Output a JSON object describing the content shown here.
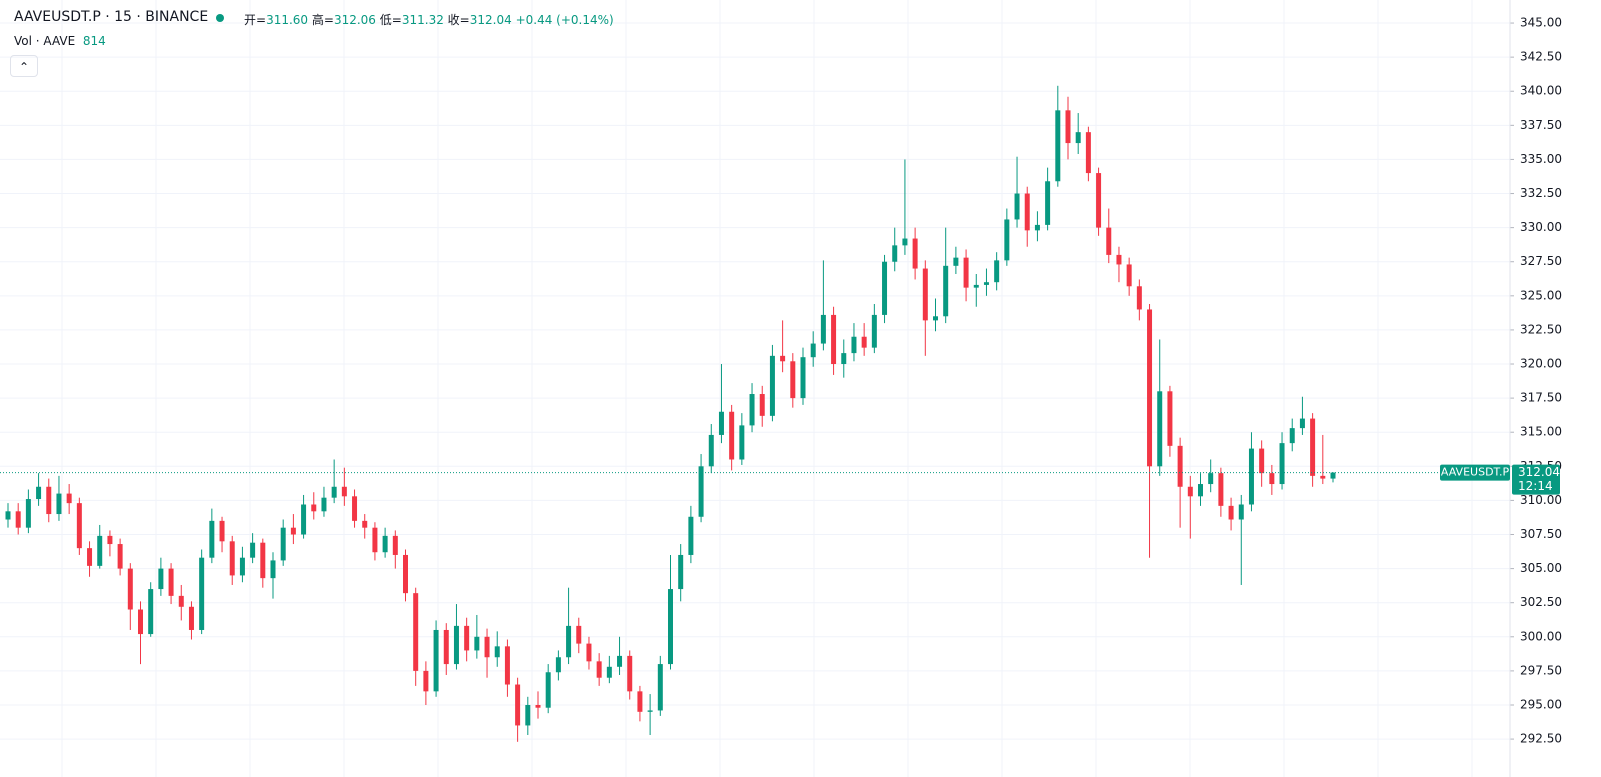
{
  "chart_data": {
    "type": "candlestick",
    "title": "AAVEUSDT.P · 15 · BINANCE",
    "legend_labels": [
      "开=",
      "高=",
      "低=",
      "收="
    ],
    "legend_values": [
      "311.60",
      "312.06",
      "311.32",
      "312.04"
    ],
    "change": "+0.44 (+0.14%)",
    "volume_label": "Vol · AAVE",
    "volume_value": 814,
    "price_tag": {
      "symbol": "AAVEUSDT.P",
      "price": "312.04",
      "countdown": "12:14"
    },
    "up_color": "#089981",
    "down_color": "#f23645",
    "ylim": [
      289.72,
      346.69
    ],
    "yticks": [
      {
        "value": 292.5,
        "label": "292.50"
      },
      {
        "value": 295,
        "label": "295.00"
      },
      {
        "value": 297.5,
        "label": "297.50"
      },
      {
        "value": 300,
        "label": "300.00"
      },
      {
        "value": 302.5,
        "label": "302.50"
      },
      {
        "value": 305,
        "label": "305.00"
      },
      {
        "value": 307.5,
        "label": "307.50"
      },
      {
        "value": 310,
        "label": "310.00"
      },
      {
        "value": 312.5,
        "label": "312.50"
      },
      {
        "value": 315,
        "label": "315.00"
      },
      {
        "value": 317.5,
        "label": "317.50"
      },
      {
        "value": 320,
        "label": "320.00"
      },
      {
        "value": 322.5,
        "label": "322.50"
      },
      {
        "value": 325,
        "label": "325.00"
      },
      {
        "value": 327.5,
        "label": "327.50"
      },
      {
        "value": 330,
        "label": "330.00"
      },
      {
        "value": 332.5,
        "label": "332.50"
      },
      {
        "value": 335,
        "label": "335.00"
      },
      {
        "value": 337.5,
        "label": "337.50"
      },
      {
        "value": 340,
        "label": "340.00"
      },
      {
        "value": 342.5,
        "label": "342.50"
      },
      {
        "value": 345,
        "label": "345.00"
      }
    ],
    "grid": true,
    "ohlc": [
      [
        308.6,
        309.8,
        308.0,
        309.2
      ],
      [
        309.2,
        309.8,
        307.5,
        308.0
      ],
      [
        308.0,
        310.8,
        307.6,
        310.1
      ],
      [
        310.1,
        312.0,
        309.6,
        311.0
      ],
      [
        311.0,
        311.6,
        308.4,
        309.0
      ],
      [
        309.0,
        311.8,
        308.5,
        310.5
      ],
      [
        310.5,
        311.2,
        309.0,
        309.8
      ],
      [
        309.8,
        310.2,
        306.0,
        306.5
      ],
      [
        306.5,
        307.0,
        304.4,
        305.2
      ],
      [
        305.2,
        308.2,
        305.0,
        307.4
      ],
      [
        307.4,
        307.8,
        305.9,
        306.8
      ],
      [
        306.8,
        307.2,
        304.5,
        305.0
      ],
      [
        305.0,
        305.4,
        300.5,
        302.0
      ],
      [
        302.0,
        302.6,
        298.0,
        300.2
      ],
      [
        300.2,
        304.0,
        300.0,
        303.5
      ],
      [
        303.5,
        305.8,
        303.0,
        305.0
      ],
      [
        305.0,
        305.4,
        302.4,
        303.0
      ],
      [
        303.0,
        303.8,
        301.2,
        302.2
      ],
      [
        302.2,
        302.6,
        299.8,
        300.5
      ],
      [
        300.5,
        306.4,
        300.2,
        305.8
      ],
      [
        305.8,
        309.4,
        305.4,
        308.5
      ],
      [
        308.5,
        308.8,
        306.2,
        307.0
      ],
      [
        307.0,
        307.4,
        303.8,
        304.5
      ],
      [
        304.5,
        306.6,
        304.0,
        305.8
      ],
      [
        305.8,
        307.6,
        305.4,
        306.9
      ],
      [
        306.9,
        307.2,
        303.6,
        304.3
      ],
      [
        304.3,
        306.2,
        302.8,
        305.6
      ],
      [
        305.6,
        308.6,
        305.2,
        308.0
      ],
      [
        308.0,
        309.0,
        306.8,
        307.5
      ],
      [
        307.5,
        310.4,
        307.2,
        309.7
      ],
      [
        309.7,
        310.6,
        308.6,
        309.2
      ],
      [
        309.2,
        311.0,
        308.8,
        310.2
      ],
      [
        310.2,
        313.0,
        309.8,
        311.0
      ],
      [
        311.0,
        312.4,
        309.6,
        310.3
      ],
      [
        310.3,
        310.8,
        308.0,
        308.5
      ],
      [
        308.5,
        309.0,
        307.2,
        308.0
      ],
      [
        308.0,
        308.4,
        305.6,
        306.2
      ],
      [
        306.2,
        308.0,
        305.8,
        307.4
      ],
      [
        307.4,
        307.8,
        305.0,
        306.0
      ],
      [
        306.0,
        306.4,
        302.6,
        303.2
      ],
      [
        303.2,
        303.6,
        296.4,
        297.5
      ],
      [
        297.5,
        298.2,
        295.0,
        296.0
      ],
      [
        296.0,
        301.2,
        295.6,
        300.5
      ],
      [
        300.5,
        301.0,
        297.2,
        298.0
      ],
      [
        298.0,
        302.4,
        297.6,
        300.8
      ],
      [
        300.8,
        301.4,
        298.2,
        299.0
      ],
      [
        299.0,
        301.6,
        298.4,
        300.0
      ],
      [
        300.0,
        300.6,
        297.0,
        298.5
      ],
      [
        298.5,
        300.4,
        297.8,
        299.3
      ],
      [
        299.3,
        299.8,
        295.6,
        296.5
      ],
      [
        296.5,
        297.0,
        292.3,
        293.5
      ],
      [
        293.5,
        295.6,
        292.8,
        295.0
      ],
      [
        295.0,
        296.0,
        294.0,
        294.8
      ],
      [
        294.8,
        298.0,
        294.4,
        297.4
      ],
      [
        297.4,
        299.0,
        296.8,
        298.5
      ],
      [
        298.5,
        303.6,
        298.0,
        300.8
      ],
      [
        300.8,
        301.4,
        298.8,
        299.5
      ],
      [
        299.5,
        300.0,
        297.6,
        298.2
      ],
      [
        298.2,
        298.8,
        296.4,
        297.0
      ],
      [
        297.0,
        298.6,
        296.6,
        297.8
      ],
      [
        297.8,
        300.0,
        297.2,
        298.6
      ],
      [
        298.6,
        299.0,
        295.4,
        296.0
      ],
      [
        296.0,
        296.4,
        293.8,
        294.5
      ],
      [
        294.5,
        295.8,
        292.8,
        294.6
      ],
      [
        294.6,
        298.6,
        294.2,
        298.0
      ],
      [
        298.0,
        306.0,
        297.6,
        303.5
      ],
      [
        303.5,
        306.8,
        302.6,
        306.0
      ],
      [
        306.0,
        309.6,
        305.4,
        308.8
      ],
      [
        308.8,
        313.4,
        308.4,
        312.5
      ],
      [
        312.5,
        315.6,
        312.0,
        314.8
      ],
      [
        314.8,
        320.0,
        314.2,
        316.5
      ],
      [
        316.5,
        317.0,
        312.2,
        313.0
      ],
      [
        313.0,
        316.4,
        312.6,
        315.5
      ],
      [
        315.5,
        318.6,
        315.0,
        317.8
      ],
      [
        317.8,
        318.4,
        315.4,
        316.2
      ],
      [
        316.2,
        321.4,
        315.8,
        320.6
      ],
      [
        320.6,
        323.2,
        319.4,
        320.2
      ],
      [
        320.2,
        320.8,
        316.8,
        317.5
      ],
      [
        317.5,
        321.2,
        317.0,
        320.5
      ],
      [
        320.5,
        322.4,
        319.8,
        321.5
      ],
      [
        321.5,
        327.6,
        321.0,
        323.6
      ],
      [
        323.6,
        324.2,
        319.2,
        320.0
      ],
      [
        320.0,
        321.8,
        319.0,
        320.8
      ],
      [
        320.8,
        323.0,
        320.2,
        322.0
      ],
      [
        322.0,
        323.0,
        320.6,
        321.2
      ],
      [
        321.2,
        324.4,
        320.8,
        323.6
      ],
      [
        323.6,
        328.0,
        323.0,
        327.5
      ],
      [
        327.5,
        330.0,
        326.8,
        328.7
      ],
      [
        328.7,
        335.0,
        328.0,
        329.2
      ],
      [
        329.2,
        330.0,
        326.2,
        327.0
      ],
      [
        327.0,
        327.6,
        320.6,
        323.2
      ],
      [
        323.2,
        324.8,
        322.4,
        323.5
      ],
      [
        323.5,
        330.0,
        323.0,
        327.2
      ],
      [
        327.2,
        328.6,
        326.6,
        327.8
      ],
      [
        327.8,
        328.4,
        324.6,
        325.6
      ],
      [
        325.6,
        326.6,
        324.2,
        325.8
      ],
      [
        325.8,
        327.0,
        325.0,
        326.0
      ],
      [
        326.0,
        328.2,
        325.4,
        327.6
      ],
      [
        327.6,
        331.4,
        327.2,
        330.6
      ],
      [
        330.6,
        335.2,
        330.0,
        332.5
      ],
      [
        332.5,
        333.0,
        328.6,
        329.8
      ],
      [
        329.8,
        331.2,
        329.0,
        330.2
      ],
      [
        330.2,
        334.4,
        329.8,
        333.4
      ],
      [
        333.4,
        340.4,
        333.0,
        338.6
      ],
      [
        338.6,
        339.6,
        335.0,
        336.2
      ],
      [
        336.2,
        338.4,
        335.4,
        337.0
      ],
      [
        337.0,
        337.4,
        333.4,
        334.0
      ],
      [
        334.0,
        334.4,
        329.4,
        330.0
      ],
      [
        330.0,
        331.4,
        327.4,
        328.0
      ],
      [
        328.0,
        328.6,
        326.0,
        327.3
      ],
      [
        327.3,
        327.8,
        325.0,
        325.7
      ],
      [
        325.7,
        326.2,
        323.2,
        324.0
      ],
      [
        324.0,
        324.4,
        305.8,
        312.5
      ],
      [
        312.5,
        321.8,
        311.8,
        318.0
      ],
      [
        318.0,
        318.4,
        313.2,
        314.0
      ],
      [
        314.0,
        314.6,
        308.0,
        311.0
      ],
      [
        311.0,
        311.8,
        307.2,
        310.3
      ],
      [
        310.3,
        312.0,
        309.6,
        311.2
      ],
      [
        311.2,
        313.0,
        310.6,
        312.0
      ],
      [
        312.0,
        312.4,
        308.8,
        309.6
      ],
      [
        309.6,
        310.2,
        307.8,
        308.6
      ],
      [
        308.6,
        310.4,
        303.8,
        309.7
      ],
      [
        309.7,
        315.0,
        309.2,
        313.8
      ],
      [
        313.8,
        314.4,
        311.0,
        312.0
      ],
      [
        312.0,
        312.6,
        310.4,
        311.2
      ],
      [
        311.2,
        315.0,
        310.8,
        314.2
      ],
      [
        314.2,
        316.0,
        313.6,
        315.3
      ],
      [
        315.3,
        317.6,
        314.8,
        316.0
      ],
      [
        316.0,
        316.4,
        311.0,
        311.8
      ],
      [
        311.8,
        314.8,
        311.2,
        311.6
      ],
      [
        311.6,
        312.06,
        311.32,
        312.04
      ]
    ]
  }
}
